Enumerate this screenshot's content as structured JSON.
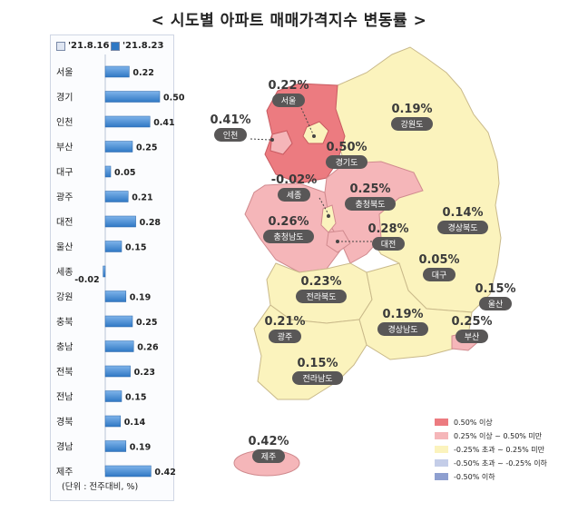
{
  "title": "< 시도별 아파트 매매가격지수 변동률 >",
  "legend_prev": "'21.8.16",
  "legend_curr": "'21.8.23",
  "unit_note": "(단위 : 전주대비, %)",
  "map_legend": [
    {
      "label": "0.50% 이상",
      "color": "#ec7b80"
    },
    {
      "label": "0.25% 이상 ~ 0.50% 미만",
      "color": "#f5b6b9"
    },
    {
      "label": "-0.25% 초과 ~ 0.25% 미만",
      "color": "#fbf3bd"
    },
    {
      "label": "-0.50% 초과 ~ -0.25% 이하",
      "color": "#c4cde8"
    },
    {
      "label": "-0.50% 이하",
      "color": "#8e9fd0"
    }
  ],
  "chart_data": {
    "type": "bar",
    "orientation": "horizontal",
    "categories": [
      "서울",
      "경기",
      "인천",
      "부산",
      "대구",
      "광주",
      "대전",
      "울산",
      "세종",
      "강원",
      "충북",
      "충남",
      "전북",
      "전남",
      "경북",
      "경남",
      "제주"
    ],
    "series": [
      {
        "name": "'21.8.23",
        "values": [
          0.22,
          0.5,
          0.41,
          0.25,
          0.05,
          0.21,
          0.28,
          0.15,
          -0.02,
          0.19,
          0.25,
          0.26,
          0.23,
          0.15,
          0.14,
          0.19,
          0.42
        ]
      }
    ],
    "colors": {
      "bar": "#2f78c4",
      "bar_light": "#7fb4ea"
    }
  },
  "regions": [
    {
      "key": "seoul",
      "name": "서울",
      "value": "0.22%"
    },
    {
      "key": "incheon",
      "name": "인천",
      "value": "0.41%"
    },
    {
      "key": "gyeonggi",
      "name": "경기도",
      "value": "0.50%"
    },
    {
      "key": "gangwon",
      "name": "강원도",
      "value": "0.19%"
    },
    {
      "key": "sejong",
      "name": "세종",
      "value": "-0.02%"
    },
    {
      "key": "chungbuk",
      "name": "충청북도",
      "value": "0.25%"
    },
    {
      "key": "chungnam",
      "name": "충청남도",
      "value": "0.26%"
    },
    {
      "key": "daejeon",
      "name": "대전",
      "value": "0.28%"
    },
    {
      "key": "gyeongbuk",
      "name": "경상북도",
      "value": "0.14%"
    },
    {
      "key": "daegu",
      "name": "대구",
      "value": "0.05%"
    },
    {
      "key": "jeonbuk",
      "name": "전라북도",
      "value": "0.23%"
    },
    {
      "key": "ulsan",
      "name": "울산",
      "value": "0.15%"
    },
    {
      "key": "gwangju",
      "name": "광주",
      "value": "0.21%"
    },
    {
      "key": "gyeongnam",
      "name": "경상남도",
      "value": "0.19%"
    },
    {
      "key": "busan",
      "name": "부산",
      "value": "0.25%"
    },
    {
      "key": "jeonnam",
      "name": "전라남도",
      "value": "0.15%"
    },
    {
      "key": "jeju",
      "name": "제주",
      "value": "0.42%"
    }
  ]
}
